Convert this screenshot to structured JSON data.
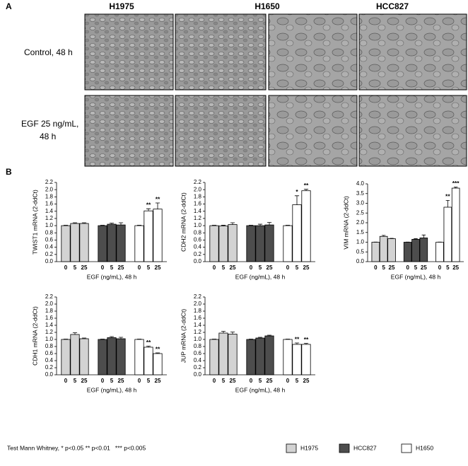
{
  "panel_a": {
    "label": "A",
    "columns": [
      "H1975",
      "H1650",
      "HCC827"
    ],
    "rows": [
      [
        "Control, 48 h"
      ],
      [
        "EGF 25 ng/mL,",
        "48 h"
      ]
    ]
  },
  "panel_b_label": "B",
  "legend": {
    "note": "Test Mann Whitney, * p<0.05 ** p<0.01   *** p<0.005",
    "items": [
      {
        "name": "H1975",
        "color": "#d3d3d3"
      },
      {
        "name": "HCC827",
        "color": "#4d4d4d"
      },
      {
        "name": "H1650",
        "color": "#ffffff"
      }
    ]
  },
  "chart_data": [
    {
      "type": "bar",
      "ylabel": "TWIST1 mRNA (2-ddCt)",
      "xlabel": "EGF (ng/mL), 48 h",
      "categories": [
        "0",
        "5",
        "25"
      ],
      "ylim": [
        0,
        2.2
      ],
      "yticks": [
        {
          "value": 0,
          "label": "0.0"
        },
        0.2,
        0.4,
        0.6,
        0.8,
        {
          "value": 1,
          "label": "1.0"
        },
        1.2,
        1.4,
        1.6,
        1.8,
        {
          "value": 2,
          "label": "2.0"
        },
        2.2
      ],
      "series": [
        {
          "values": [
            1.0,
            1.06,
            1.06
          ],
          "errors": [
            0.01,
            0.02,
            0.02
          ],
          "stars": [
            null,
            null,
            null
          ]
        },
        {
          "values": [
            1.0,
            1.04,
            1.02
          ],
          "errors": [
            0.01,
            0.03,
            0.06
          ],
          "stars": [
            null,
            null,
            null
          ]
        },
        {
          "values": [
            1.0,
            1.41,
            1.46
          ],
          "errors": [
            0.01,
            0.06,
            0.17
          ],
          "stars": [
            null,
            "**",
            "**"
          ]
        }
      ]
    },
    {
      "type": "bar",
      "ylabel": "CDH2 mRNA (2-ddCt)",
      "xlabel": "EGF (ng/mL), 48 h",
      "categories": [
        "0",
        "5",
        "25"
      ],
      "ylim": [
        0,
        2.2
      ],
      "yticks": [
        {
          "value": 0,
          "label": "0.0"
        },
        0.2,
        0.4,
        0.6,
        0.8,
        {
          "value": 1,
          "label": "1.0"
        },
        1.2,
        1.4,
        1.6,
        1.8,
        {
          "value": 2,
          "label": "2.0"
        },
        2.2
      ],
      "series": [
        {
          "values": [
            1.0,
            0.99,
            1.03
          ],
          "errors": [
            0.01,
            0.02,
            0.05
          ],
          "stars": [
            null,
            null,
            null
          ]
        },
        {
          "values": [
            1.0,
            1.0,
            1.02
          ],
          "errors": [
            0.01,
            0.04,
            0.07
          ],
          "stars": [
            null,
            null,
            null
          ]
        },
        {
          "values": [
            1.0,
            1.58,
            1.97
          ],
          "errors": [
            0.01,
            0.25,
            0.04
          ],
          "stars": [
            null,
            "*",
            "**"
          ]
        }
      ]
    },
    {
      "type": "bar",
      "ylabel": "VIM mRNA (2-ddCt)",
      "xlabel": "EGF (ng/mL), 48 h",
      "categories": [
        "0",
        "5",
        "25"
      ],
      "ylim": [
        0,
        4
      ],
      "yticks": [
        {
          "value": 0,
          "label": "0.0"
        },
        0.5,
        {
          "value": 1,
          "label": "1.0"
        },
        1.5,
        {
          "value": 2,
          "label": "2.0"
        },
        2.5,
        {
          "value": 3,
          "label": "3.0"
        },
        3.5,
        {
          "value": 4,
          "label": "4.0"
        }
      ],
      "series": [
        {
          "values": [
            1.0,
            1.3,
            1.18
          ],
          "errors": [
            0.01,
            0.05,
            0.02
          ],
          "stars": [
            null,
            null,
            null
          ]
        },
        {
          "values": [
            1.0,
            1.15,
            1.22
          ],
          "errors": [
            0.01,
            0.03,
            0.15
          ],
          "stars": [
            null,
            null,
            null
          ]
        },
        {
          "values": [
            1.0,
            2.8,
            3.78
          ],
          "errors": [
            0.01,
            0.35,
            0.05
          ],
          "stars": [
            null,
            "**",
            "***"
          ]
        }
      ]
    },
    {
      "type": "bar",
      "ylabel": "CDH1 mRNA (2-ddCt)",
      "xlabel": "EGF (ng/mL), 48 h",
      "categories": [
        "0",
        "5",
        "25"
      ],
      "ylim": [
        0,
        2.2
      ],
      "yticks": [
        {
          "value": 0,
          "label": "0.0"
        },
        0.2,
        0.4,
        0.6,
        0.8,
        {
          "value": 1,
          "label": "1.0"
        },
        1.2,
        1.4,
        1.6,
        1.8,
        {
          "value": 2,
          "label": "2.0"
        },
        2.2
      ],
      "series": [
        {
          "values": [
            1.0,
            1.14,
            1.02
          ],
          "errors": [
            0.01,
            0.05,
            0.02
          ],
          "stars": [
            null,
            null,
            null
          ]
        },
        {
          "values": [
            1.0,
            1.05,
            1.02
          ],
          "errors": [
            0.01,
            0.03,
            0.04
          ],
          "stars": [
            null,
            null,
            null
          ]
        },
        {
          "values": [
            1.0,
            0.78,
            0.6
          ],
          "errors": [
            0.01,
            0.03,
            0.02
          ],
          "stars": [
            null,
            "**",
            "**"
          ]
        }
      ]
    },
    {
      "type": "bar",
      "ylabel": "JUP mRNA (2-ddCt)",
      "xlabel": "EGF (ng/mL), 48 h",
      "categories": [
        "0",
        "5",
        "25"
      ],
      "ylim": [
        0,
        2.2
      ],
      "yticks": [
        {
          "value": 0,
          "label": "0.0"
        },
        0.2,
        0.4,
        0.6,
        0.8,
        {
          "value": 1,
          "label": "1.0"
        },
        1.2,
        1.4,
        1.6,
        1.8,
        {
          "value": 2,
          "label": "2.0"
        },
        2.2
      ],
      "series": [
        {
          "values": [
            1.0,
            1.18,
            1.15
          ],
          "errors": [
            0.01,
            0.05,
            0.06
          ],
          "stars": [
            null,
            null,
            null
          ]
        },
        {
          "values": [
            1.0,
            1.04,
            1.1
          ],
          "errors": [
            0.01,
            0.02,
            0.02
          ],
          "stars": [
            null,
            null,
            null
          ]
        },
        {
          "values": [
            1.0,
            0.86,
            0.86
          ],
          "errors": [
            0.01,
            0.04,
            0.03
          ],
          "stars": [
            null,
            "**",
            "**"
          ]
        }
      ]
    }
  ]
}
